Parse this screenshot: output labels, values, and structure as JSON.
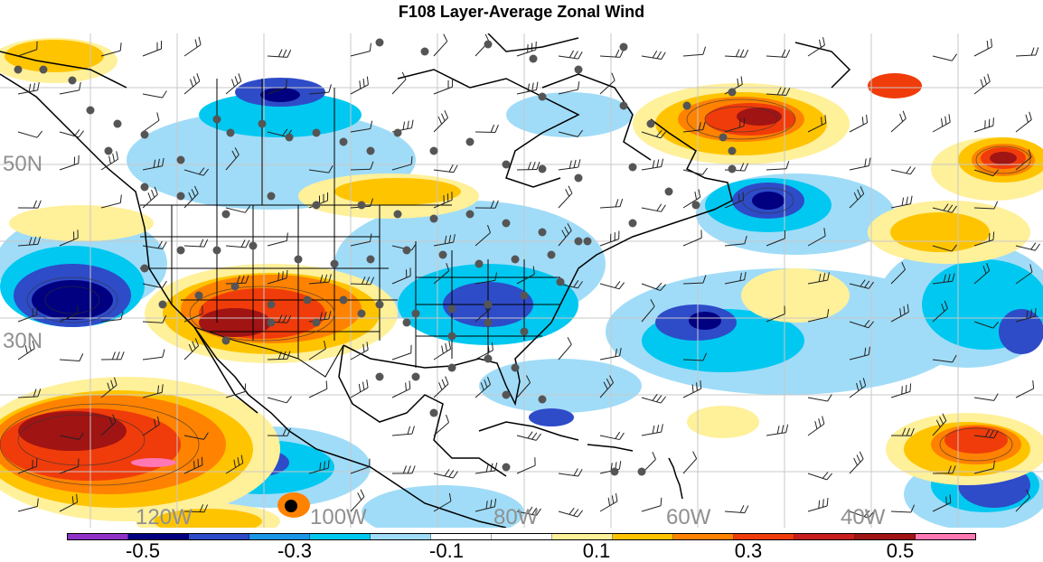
{
  "title": "F108 Layer-Average Zonal Wind",
  "map": {
    "lat_labels": [
      "50N",
      "30N"
    ],
    "lon_labels": [
      "120W",
      "100W",
      "80W",
      "60W",
      "40W"
    ]
  },
  "colorbar": {
    "colors": [
      "#8e32c8",
      "#000080",
      "#2e4bc8",
      "#1a96e6",
      "#00c8f0",
      "#a0dcf8",
      "#ffffff",
      "#ffffff",
      "#fff09a",
      "#ffc400",
      "#ff8200",
      "#f03c0a",
      "#c81e1e",
      "#a01414",
      "#ff78b4"
    ],
    "tick_labels": [
      "-0.5",
      "-0.3",
      "-0.1",
      "0.1",
      "0.3",
      "0.5"
    ]
  }
}
